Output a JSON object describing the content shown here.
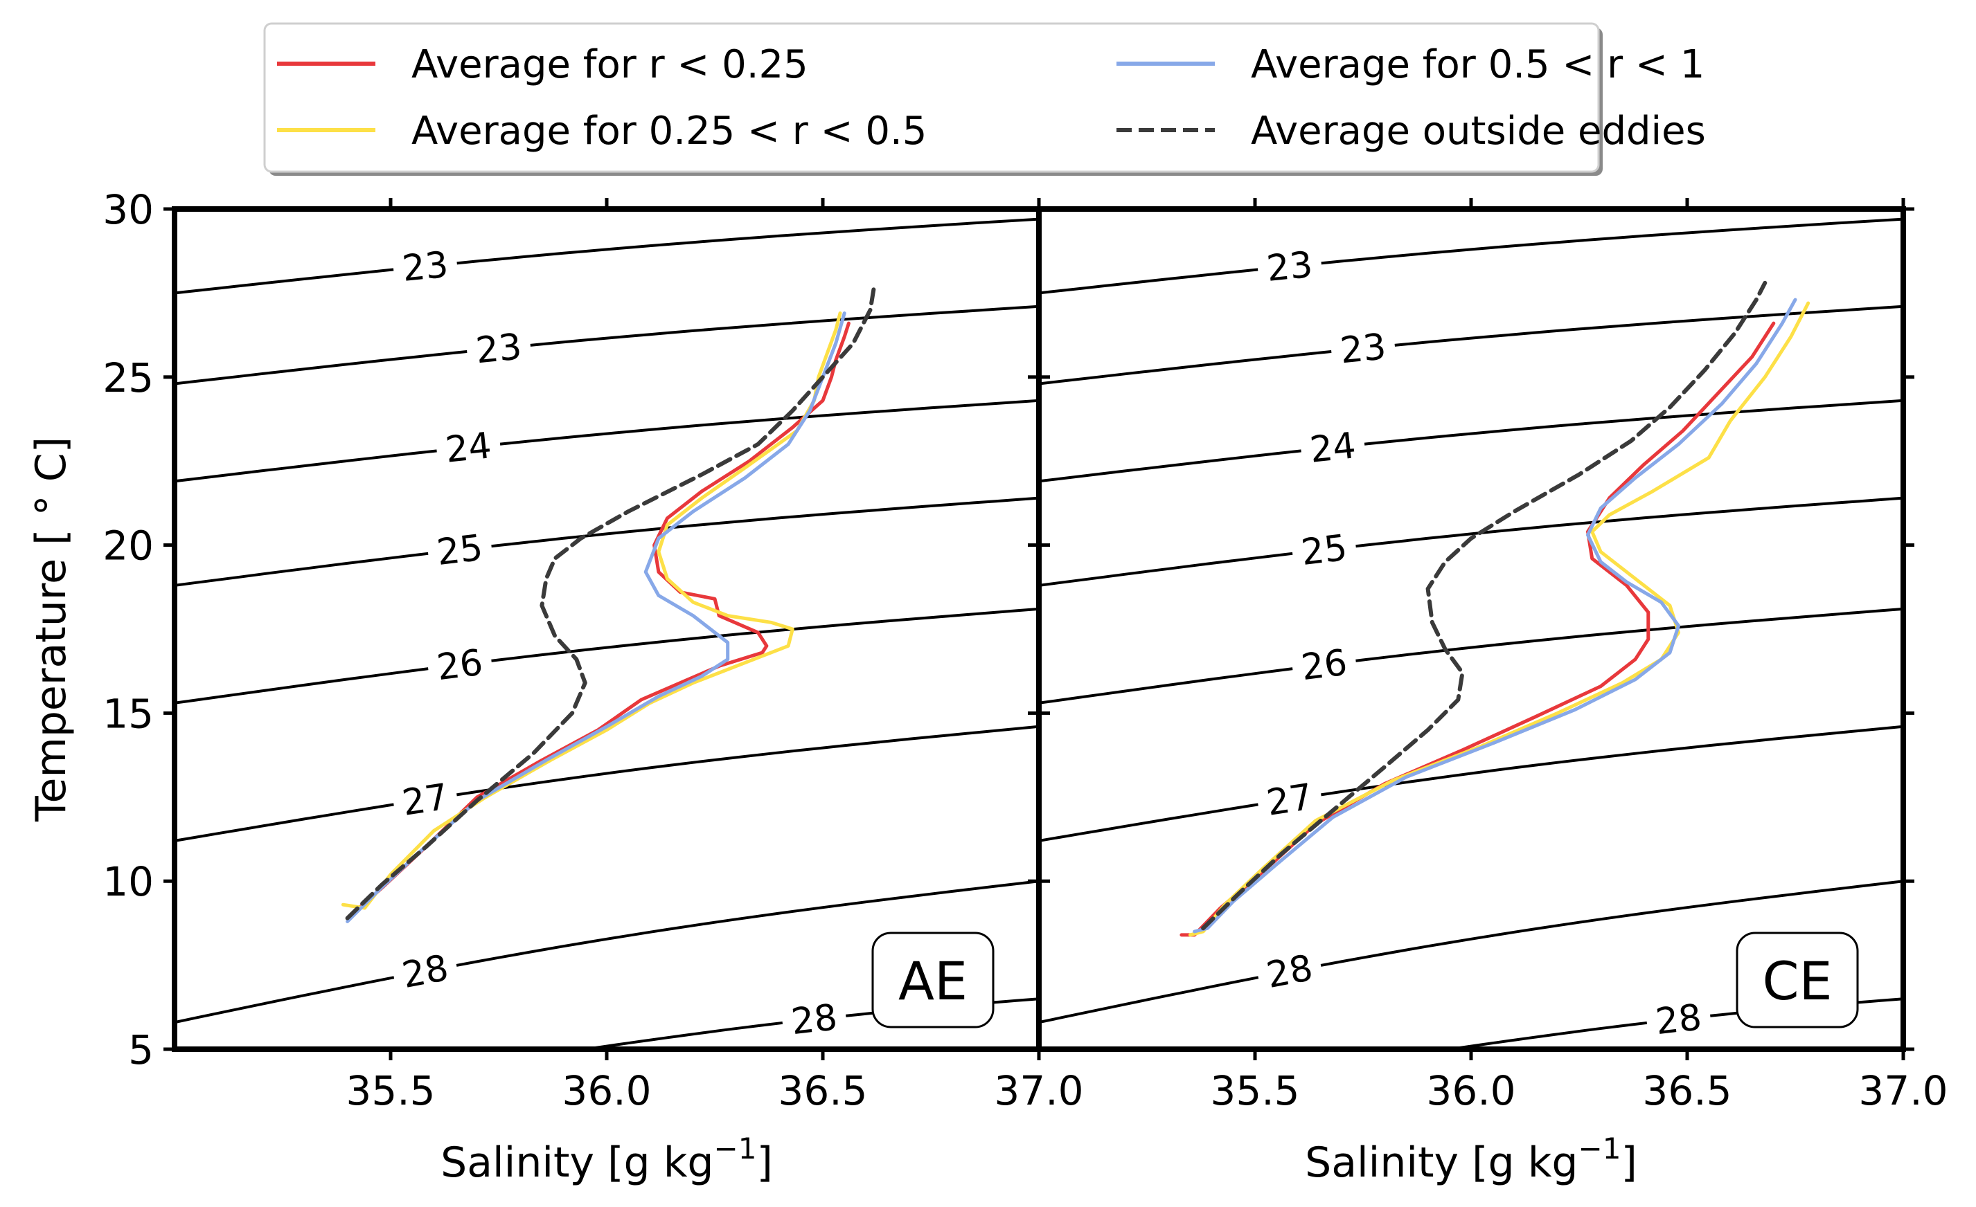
{
  "chart_data": {
    "type": "line",
    "legend": {
      "placement": "top-center",
      "columns": 2,
      "entries": [
        {
          "name": "Average for r < 0.25",
          "color": "#e8383b",
          "dash": "solid"
        },
        {
          "name": "Average for 0.5 < r < 1",
          "color": "#87a8e8",
          "dash": "solid"
        },
        {
          "name": "Average for 0.25 < r < 0.5",
          "color": "#fde047",
          "dash": "solid"
        },
        {
          "name": "Average outside eddies",
          "color": "#3a3a3a",
          "dash": "dashed"
        }
      ]
    },
    "ylabel": "Temperature [ ° C]",
    "ylim": [
      5,
      30
    ],
    "yticks": [
      "5",
      "10",
      "15",
      "20",
      "25",
      "30"
    ],
    "grid": false,
    "panels": [
      {
        "label": "AE",
        "xlabel_main": "Salinity [g kg",
        "xlabel_sup": "−1",
        "xlabel_end": "]",
        "xlim": [
          35.0,
          37.0
        ],
        "xticks": [
          "35.5",
          "36.0",
          "36.5",
          "37.0"
        ],
        "contours": [
          {
            "label": "23",
            "y_left": 27.5,
            "y_right": 29.7,
            "label_x": 35.58
          },
          {
            "label": "23",
            "y_left": 24.8,
            "y_right": 27.1,
            "label_x": 35.75
          },
          {
            "label": "24",
            "y_left": 21.9,
            "y_right": 24.3,
            "label_x": 35.68
          },
          {
            "label": "25",
            "y_left": 18.8,
            "y_right": 21.4,
            "label_x": 35.66
          },
          {
            "label": "26",
            "y_left": 15.3,
            "y_right": 18.1,
            "label_x": 35.66
          },
          {
            "label": "27",
            "y_left": 11.2,
            "y_right": 14.6,
            "label_x": 35.58
          },
          {
            "label": "28",
            "y_left": 5.8,
            "y_right": 10.0,
            "label_x": 35.58
          },
          {
            "label": "28",
            "y_left": null,
            "y_right": 6.5,
            "label_x": 36.48,
            "x_start": 35.95
          }
        ],
        "series": [
          {
            "name": "Average for r < 0.25",
            "x": [
              35.4,
              35.48,
              35.58,
              35.7,
              35.85,
              35.98,
              36.08,
              36.17,
              36.26,
              36.36,
              36.37,
              36.35,
              36.26,
              36.25,
              36.17,
              36.12,
              36.11,
              36.14,
              36.22,
              36.33,
              36.43,
              36.5,
              36.52,
              36.53,
              36.55,
              36.56
            ],
            "y": [
              8.9,
              9.8,
              11.0,
              12.5,
              13.6,
              14.5,
              15.4,
              15.9,
              16.4,
              16.8,
              17.0,
              17.4,
              17.9,
              18.4,
              18.6,
              19.2,
              20.0,
              20.8,
              21.6,
              22.5,
              23.5,
              24.3,
              25.0,
              25.5,
              26.2,
              26.6
            ]
          },
          {
            "name": "Average for 0.25 < r < 0.5",
            "x": [
              35.39,
              35.44,
              35.5,
              35.6,
              35.72,
              35.87,
              36.0,
              36.1,
              36.2,
              36.32,
              36.42,
              36.43,
              36.38,
              36.28,
              36.2,
              36.14,
              36.12,
              36.14,
              36.22,
              36.32,
              36.44,
              36.48,
              36.49,
              36.51,
              36.53,
              36.54
            ],
            "y": [
              9.3,
              9.2,
              10.2,
              11.5,
              12.5,
              13.6,
              14.5,
              15.3,
              15.9,
              16.5,
              17.0,
              17.5,
              17.7,
              17.9,
              18.3,
              19.0,
              19.8,
              20.6,
              21.4,
              22.3,
              23.4,
              24.3,
              25.0,
              25.7,
              26.4,
              26.9
            ]
          },
          {
            "name": "Average for 0.5 < r < 1",
            "x": [
              35.4,
              35.47,
              35.57,
              35.7,
              35.86,
              36.0,
              36.12,
              36.22,
              36.28,
              36.28,
              36.2,
              36.12,
              36.09,
              36.12,
              36.2,
              36.32,
              36.42,
              36.47,
              36.5,
              36.53,
              36.55
            ],
            "y": [
              8.8,
              9.7,
              10.9,
              12.4,
              13.6,
              14.6,
              15.5,
              16.1,
              16.6,
              17.1,
              17.9,
              18.5,
              19.2,
              20.2,
              21.0,
              22.0,
              23.0,
              24.0,
              25.0,
              26.0,
              26.9
            ]
          },
          {
            "name": "Average outside eddies",
            "x": [
              35.4,
              35.48,
              35.58,
              35.7,
              35.83,
              35.92,
              35.95,
              35.93,
              35.88,
              35.85,
              35.86,
              35.88,
              35.94,
              36.05,
              36.22,
              36.35,
              36.43,
              36.5,
              36.57,
              36.61,
              36.62
            ],
            "y": [
              8.9,
              9.9,
              11.0,
              12.4,
              13.8,
              15.0,
              15.9,
              16.6,
              17.3,
              18.2,
              19.0,
              19.6,
              20.2,
              21.0,
              22.1,
              23.0,
              24.0,
              25.0,
              26.0,
              27.0,
              27.8
            ]
          }
        ]
      },
      {
        "label": "CE",
        "xlabel_main": "Salinity [g kg",
        "xlabel_sup": "−1",
        "xlabel_end": "]",
        "xlim": [
          35.0,
          37.0
        ],
        "xticks": [
          "35.5",
          "36.0",
          "36.5",
          "37.0"
        ],
        "contours": [
          {
            "label": "23",
            "y_left": 27.5,
            "y_right": 29.7,
            "label_x": 35.58
          },
          {
            "label": "23",
            "y_left": 24.8,
            "y_right": 27.1,
            "label_x": 35.75
          },
          {
            "label": "24",
            "y_left": 21.9,
            "y_right": 24.3,
            "label_x": 35.68
          },
          {
            "label": "25",
            "y_left": 18.8,
            "y_right": 21.4,
            "label_x": 35.66
          },
          {
            "label": "26",
            "y_left": 15.3,
            "y_right": 18.1,
            "label_x": 35.66
          },
          {
            "label": "27",
            "y_left": 11.2,
            "y_right": 14.6,
            "label_x": 35.58
          },
          {
            "label": "28",
            "y_left": 5.8,
            "y_right": 10.0,
            "label_x": 35.58
          },
          {
            "label": "28",
            "y_left": null,
            "y_right": 6.5,
            "label_x": 36.48,
            "x_start": 35.95
          }
        ],
        "series": [
          {
            "name": "Average for r < 0.25",
            "x": [
              35.33,
              35.36,
              35.42,
              35.52,
              35.64,
              35.8,
              35.98,
              36.15,
              36.3,
              36.38,
              36.41,
              36.41,
              36.36,
              36.28,
              36.27,
              36.32,
              36.4,
              36.49,
              36.57,
              36.65,
              36.7
            ],
            "y": [
              8.4,
              8.4,
              9.2,
              10.3,
              11.7,
              12.9,
              13.9,
              14.9,
              15.8,
              16.6,
              17.2,
              18.0,
              18.8,
              19.6,
              20.4,
              21.4,
              22.4,
              23.4,
              24.5,
              25.6,
              26.6
            ]
          },
          {
            "name": "Average for 0.25 < r < 0.5",
            "x": [
              35.35,
              35.38,
              35.43,
              35.52,
              35.64,
              35.82,
              36.02,
              36.2,
              36.35,
              36.44,
              36.48,
              36.46,
              36.38,
              36.3,
              36.28,
              36.32,
              36.42,
              36.55,
              36.6,
              36.68,
              36.74,
              36.78
            ],
            "y": [
              8.4,
              8.5,
              9.3,
              10.4,
              11.8,
              13.0,
              14.0,
              15.0,
              15.9,
              16.6,
              17.4,
              18.2,
              19.0,
              19.8,
              20.4,
              20.9,
              21.6,
              22.6,
              23.7,
              25.0,
              26.2,
              27.2
            ]
          },
          {
            "name": "Average for 0.5 < r < 1",
            "x": [
              35.36,
              35.39,
              35.45,
              35.55,
              35.68,
              35.85,
              36.05,
              36.24,
              36.38,
              36.46,
              36.48,
              36.44,
              36.36,
              36.3,
              36.27,
              36.3,
              36.38,
              36.48,
              36.58,
              36.66,
              36.72,
              36.75
            ],
            "y": [
              8.5,
              8.6,
              9.4,
              10.5,
              11.9,
              13.1,
              14.1,
              15.1,
              16.0,
              16.8,
              17.6,
              18.3,
              18.9,
              19.5,
              20.3,
              21.1,
              22.0,
              23.0,
              24.2,
              25.4,
              26.6,
              27.3
            ]
          },
          {
            "name": "Average outside eddies",
            "x": [
              35.38,
              35.46,
              35.56,
              35.68,
              35.8,
              35.9,
              35.97,
              35.98,
              35.94,
              35.91,
              35.9,
              35.94,
              36.0,
              36.1,
              36.25,
              36.37,
              36.46,
              36.54,
              36.61,
              36.66,
              36.68
            ],
            "y": [
              8.6,
              9.6,
              10.8,
              12.1,
              13.4,
              14.5,
              15.4,
              16.2,
              16.9,
              17.7,
              18.7,
              19.5,
              20.2,
              21.0,
              22.1,
              23.1,
              24.1,
              25.2,
              26.3,
              27.3,
              27.8
            ]
          }
        ]
      }
    ]
  }
}
